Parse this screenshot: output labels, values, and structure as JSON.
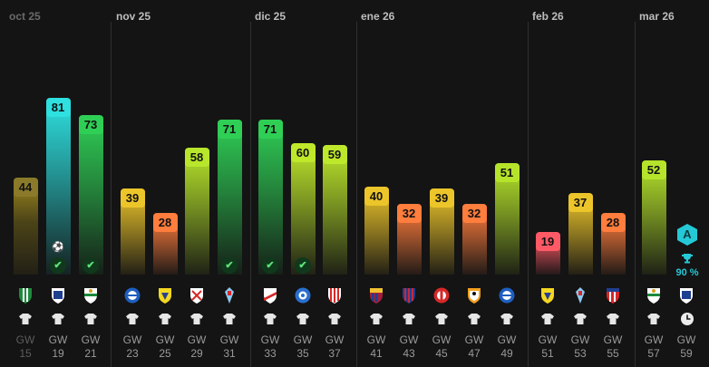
{
  "months": [
    {
      "label": "oct 25",
      "dim": true
    },
    {
      "label": "nov 25",
      "dim": false
    },
    {
      "label": "dic 25",
      "dim": false
    },
    {
      "label": "ene 26",
      "dim": false
    },
    {
      "label": "feb 26",
      "dim": false
    },
    {
      "label": "mar 26",
      "dim": false
    }
  ],
  "fixtures": [
    {
      "gw_prefix": "GW",
      "gw": "15",
      "score": 44,
      "color": "#e5c521",
      "crest": "betis",
      "played": true,
      "icons": []
    },
    {
      "gw_prefix": "GW",
      "gw": "19",
      "score": 81,
      "color": "#2ee0e0",
      "crest": "oviedo",
      "played": false,
      "icons": [
        "ball",
        "clean"
      ]
    },
    {
      "gw_prefix": "GW",
      "gw": "21",
      "score": 73,
      "color": "#2fcf56",
      "crest": "elche",
      "played": false,
      "icons": [
        "clean"
      ]
    },
    {
      "gw_prefix": "GW",
      "gw": "23",
      "score": 39,
      "color": "#ecc52a",
      "crest": "alaves",
      "played": false,
      "icons": []
    },
    {
      "gw_prefix": "GW",
      "gw": "25",
      "score": 28,
      "color": "#ff7d3d",
      "crest": "villarreal",
      "played": false,
      "icons": []
    },
    {
      "gw_prefix": "GW",
      "gw": "29",
      "score": 58,
      "color": "#b8e62b",
      "crest": "sevilla",
      "played": false,
      "icons": []
    },
    {
      "gw_prefix": "GW",
      "gw": "31",
      "score": 71,
      "color": "#2fcf56",
      "crest": "celta",
      "played": false,
      "icons": [
        "clean"
      ]
    },
    {
      "gw_prefix": "GW",
      "gw": "33",
      "score": 71,
      "color": "#2fcf56",
      "crest": "rayo",
      "played": false,
      "icons": [
        "clean"
      ]
    },
    {
      "gw_prefix": "GW",
      "gw": "35",
      "score": 60,
      "color": "#bfe82b",
      "crest": "getafe",
      "played": false,
      "icons": [
        "clean"
      ]
    },
    {
      "gw_prefix": "GW",
      "gw": "37",
      "score": 59,
      "color": "#bde82b",
      "crest": "athletic",
      "played": false,
      "icons": []
    },
    {
      "gw_prefix": "GW",
      "gw": "41",
      "score": 40,
      "color": "#ecc52a",
      "crest": "barcelona",
      "played": false,
      "icons": []
    },
    {
      "gw_prefix": "GW",
      "gw": "43",
      "score": 32,
      "color": "#ff7d3d",
      "crest": "levante",
      "played": false,
      "icons": []
    },
    {
      "gw_prefix": "GW",
      "gw": "45",
      "score": 39,
      "color": "#ecc52a",
      "crest": "girona",
      "played": false,
      "icons": []
    },
    {
      "gw_prefix": "GW",
      "gw": "47",
      "score": 32,
      "color": "#ff7d3d",
      "crest": "valencia",
      "played": false,
      "icons": []
    },
    {
      "gw_prefix": "GW",
      "gw": "49",
      "score": 51,
      "color": "#b5e42b",
      "crest": "alaves",
      "played": false,
      "icons": []
    },
    {
      "gw_prefix": "GW",
      "gw": "51",
      "score": 19,
      "color": "#ff5a66",
      "crest": "villarreal",
      "played": false,
      "icons": []
    },
    {
      "gw_prefix": "GW",
      "gw": "53",
      "score": 37,
      "color": "#ecc52a",
      "crest": "celta",
      "played": false,
      "icons": []
    },
    {
      "gw_prefix": "GW",
      "gw": "55",
      "score": 28,
      "color": "#ff7d3d",
      "crest": "atletico",
      "played": false,
      "icons": []
    },
    {
      "gw_prefix": "GW",
      "gw": "57",
      "score": 52,
      "color": "#b5e42b",
      "crest": "elche",
      "played": false,
      "icons": []
    },
    {
      "gw_prefix": "GW",
      "gw": "59",
      "score": null,
      "color": "",
      "crest": "oviedo",
      "played": false,
      "icons": [],
      "pending": true
    }
  ],
  "next": {
    "tier": "A",
    "percent": "90 %",
    "accent": "#25c9d6"
  }
}
